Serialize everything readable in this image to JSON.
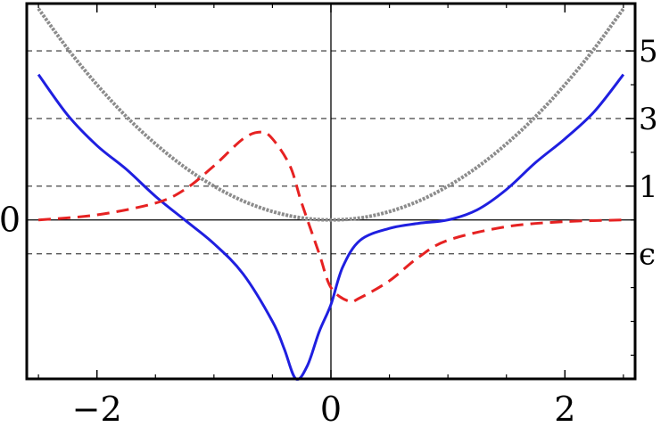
{
  "chart_data": {
    "type": "line",
    "title": "",
    "xlabel": "",
    "ylabel": "",
    "xlim": [
      -2.6,
      2.6
    ],
    "ylim": [
      -4.7,
      6.4
    ],
    "x_ticks": [
      -2,
      0,
      2
    ],
    "x_tick_labels": [
      "−2",
      "0",
      "2"
    ],
    "left_ticks": [
      {
        "y": 0,
        "label": "0"
      }
    ],
    "right_ticks": [
      {
        "y": 5,
        "label": "5"
      },
      {
        "y": 3,
        "label": "3"
      },
      {
        "y": 1,
        "label": "1"
      },
      {
        "y": -1,
        "label": "ϵ"
      }
    ],
    "dashed_levels": [
      5,
      3,
      1,
      -1
    ],
    "series": [
      {
        "style": "dotted-gray",
        "color": "#8c8c8c",
        "x": [
          -2.5,
          -2.25,
          -2.0,
          -1.75,
          -1.5,
          -1.25,
          -1.0,
          -0.75,
          -0.5,
          -0.25,
          0.0,
          0.25,
          0.5,
          0.75,
          1.0,
          1.25,
          1.5,
          1.75,
          2.0,
          2.25,
          2.5
        ],
        "y": [
          6.25,
          5.06,
          4.0,
          3.06,
          2.25,
          1.56,
          1.0,
          0.56,
          0.25,
          0.06,
          0.0,
          0.06,
          0.25,
          0.56,
          1.0,
          1.56,
          2.25,
          3.06,
          4.0,
          5.06,
          6.25
        ]
      },
      {
        "style": "solid-blue",
        "color": "#1f1fe0",
        "x": [
          -2.5,
          -2.25,
          -2.0,
          -1.75,
          -1.5,
          -1.25,
          -1.0,
          -0.75,
          -0.5,
          -0.4,
          -0.3,
          -0.2,
          -0.1,
          0.0,
          0.1,
          0.25,
          0.5,
          0.75,
          1.0,
          1.25,
          1.5,
          1.75,
          2.0,
          2.25,
          2.5
        ],
        "y": [
          4.3,
          3.1,
          2.2,
          1.5,
          0.7,
          0.0,
          -0.7,
          -1.6,
          -3.0,
          -3.8,
          -4.7,
          -4.3,
          -3.3,
          -2.5,
          -1.4,
          -0.6,
          -0.25,
          -0.1,
          0.0,
          0.3,
          0.9,
          1.7,
          2.4,
          3.2,
          4.3
        ]
      },
      {
        "style": "dashed-red",
        "color": "#e62222",
        "x": [
          -2.5,
          -2.0,
          -1.5,
          -1.25,
          -1.0,
          -0.75,
          -0.6,
          -0.5,
          -0.35,
          -0.25,
          -0.1,
          0.0,
          0.15,
          0.25,
          0.5,
          0.75,
          1.0,
          1.5,
          2.0,
          2.5
        ],
        "y": [
          0.0,
          0.15,
          0.5,
          0.9,
          1.6,
          2.4,
          2.6,
          2.4,
          1.6,
          0.5,
          -1.0,
          -2.0,
          -2.4,
          -2.3,
          -1.8,
          -1.1,
          -0.6,
          -0.2,
          -0.05,
          0.0
        ]
      }
    ]
  }
}
